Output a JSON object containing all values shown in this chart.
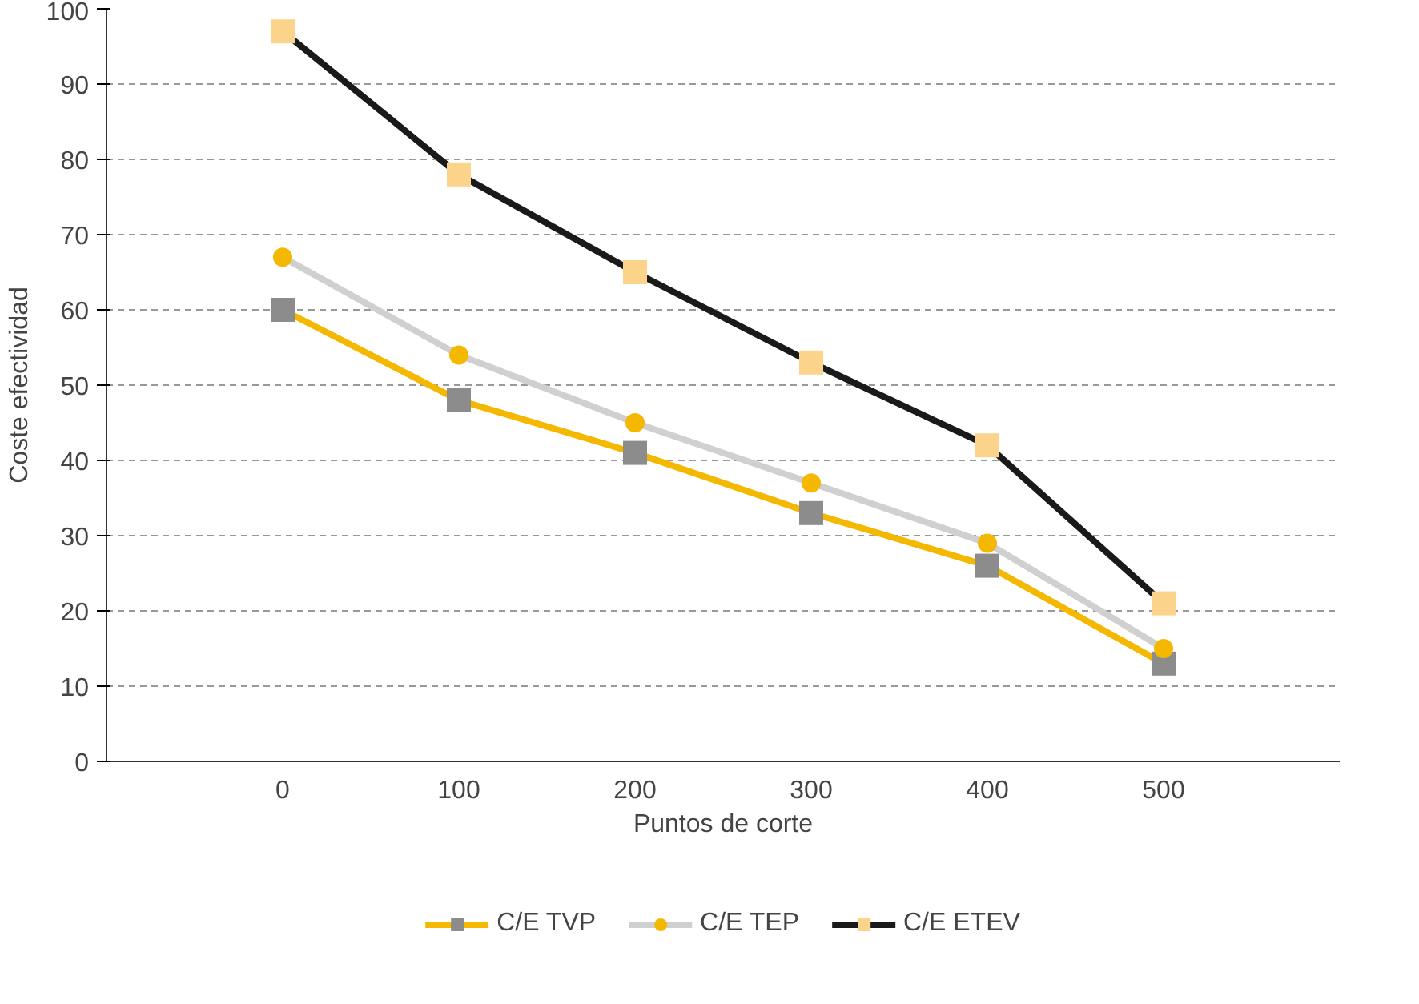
{
  "chart_data": {
    "type": "line",
    "xlabel": "Puntos de corte",
    "ylabel": "Coste efectividad",
    "categories": [
      "0",
      "100",
      "200",
      "300",
      "400",
      "500"
    ],
    "series": [
      {
        "name": "C/E TVP",
        "color": "#f5b800",
        "marker": "square",
        "colors": [
          "#8c8c8c",
          "#8c8c8c",
          "#8c8c8c",
          "#8c8c8c",
          "#8c8c8c",
          "#8c8c8c"
        ],
        "values": [
          60,
          48,
          41,
          33,
          26,
          13
        ]
      },
      {
        "name": "C/E TEP",
        "color": "#d0d0d0",
        "marker": "circle",
        "colors": [
          "#f5b800",
          "#f5b800",
          "#f5b800",
          "#f5b800",
          "#f5b800",
          "#f5b800"
        ],
        "values": [
          67,
          54,
          45,
          37,
          29,
          15
        ]
      },
      {
        "name": "C/E ETEV",
        "color": "#1a1a1a",
        "marker": "square",
        "colors": [
          "#fbd38a",
          "#fbd38a",
          "#fbd38a",
          "#fbd38a",
          "#fbd38a",
          "#fbd38a"
        ],
        "values": [
          97,
          78,
          65,
          53,
          42,
          21
        ]
      }
    ],
    "ylim": [
      0,
      100
    ],
    "yticks": [
      0,
      10,
      20,
      30,
      40,
      50,
      60,
      70,
      80,
      90,
      100
    ],
    "grid": "y",
    "legend": "bottom",
    "line_style": "solid"
  }
}
